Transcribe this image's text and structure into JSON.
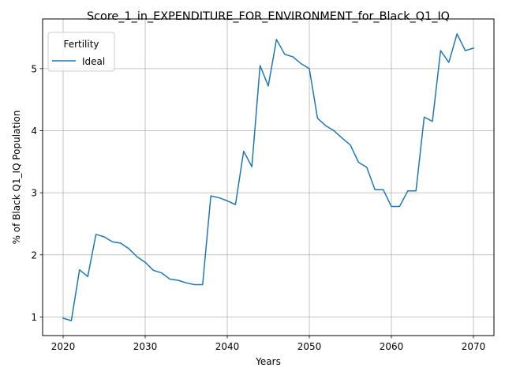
{
  "chart_data": {
    "type": "line",
    "title": "Score_1_in_EXPENDITURE_FOR_ENVIRONMENT_for_Black_Q1_IQ",
    "xlabel": "Years",
    "ylabel": "% of Black Q1_IQ Population",
    "xlim": [
      2017.5,
      2072.5
    ],
    "ylim": [
      0.7,
      5.8
    ],
    "xticks": [
      2020,
      2030,
      2040,
      2050,
      2060,
      2070
    ],
    "yticks": [
      1,
      2,
      3,
      4,
      5
    ],
    "grid": true,
    "legend": {
      "title": "Fertility",
      "placement": "top-left"
    },
    "x": [
      2020,
      2021,
      2022,
      2023,
      2024,
      2025,
      2026,
      2027,
      2028,
      2029,
      2030,
      2031,
      2032,
      2033,
      2034,
      2035,
      2036,
      2037,
      2038,
      2039,
      2040,
      2041,
      2042,
      2043,
      2044,
      2045,
      2046,
      2047,
      2048,
      2049,
      2050,
      2051,
      2052,
      2053,
      2054,
      2055,
      2056,
      2057,
      2058,
      2059,
      2060,
      2061,
      2062,
      2063,
      2064,
      2065,
      2066,
      2067,
      2068,
      2069,
      2070
    ],
    "series": [
      {
        "name": "Ideal",
        "color": "#1f77b4",
        "values": [
          0.98,
          0.94,
          1.76,
          1.65,
          2.33,
          2.29,
          2.21,
          2.19,
          2.1,
          1.97,
          1.88,
          1.75,
          1.71,
          1.61,
          1.59,
          1.55,
          1.52,
          1.52,
          2.95,
          2.92,
          2.87,
          2.81,
          3.67,
          3.42,
          5.05,
          4.72,
          5.47,
          5.23,
          5.19,
          5.08,
          5.0,
          4.2,
          4.08,
          4.0,
          3.88,
          3.77,
          3.49,
          3.41,
          3.05,
          3.05,
          2.78,
          2.78,
          3.03,
          3.03,
          4.22,
          4.15,
          5.29,
          5.1,
          5.56,
          5.29,
          5.33
        ]
      }
    ]
  }
}
